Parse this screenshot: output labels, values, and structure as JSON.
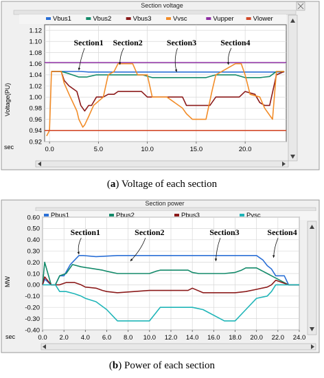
{
  "chart_data": [
    {
      "type": "line",
      "title": "Section voltage",
      "ylabel": "Voltage(PU)",
      "xunit_label": "sec",
      "caption_tag": "a",
      "caption_text": "Voltage of each section",
      "xlim": [
        -0.5,
        24.2
      ],
      "ylim": [
        0.92,
        1.13
      ],
      "xticks": [
        "0.0",
        "5.0",
        "10.0",
        "15.0",
        "20.0"
      ],
      "xtick_values": [
        0,
        5,
        10,
        15,
        20
      ],
      "yticks": [
        "0.92",
        "0.94",
        "0.96",
        "0.98",
        "1.00",
        "1.02",
        "1.04",
        "1.06",
        "1.08",
        "1.10",
        "1.12"
      ],
      "ytick_values": [
        0.92,
        0.94,
        0.96,
        0.98,
        1.0,
        1.02,
        1.04,
        1.06,
        1.08,
        1.1,
        1.12
      ],
      "grid": true,
      "legend_position": "top",
      "annotations": [
        {
          "text": "Section1",
          "x": 4.0,
          "y": 1.093,
          "arrow_to": [
            3.0,
            1.048
          ]
        },
        {
          "text": "Section2",
          "x": 8.0,
          "y": 1.093,
          "arrow_to": [
            7.2,
            1.058
          ]
        },
        {
          "text": "Section3",
          "x": 13.5,
          "y": 1.093,
          "arrow_to": [
            13.0,
            1.045
          ]
        },
        {
          "text": "Section4",
          "x": 19.0,
          "y": 1.093,
          "arrow_to": [
            18.3,
            1.058
          ]
        }
      ],
      "series": [
        {
          "name": "Vbus1",
          "color": "#2a6fd6",
          "x": [
            0.2,
            1.2,
            3.2,
            4.0,
            5.6,
            23.2,
            24.0
          ],
          "y": [
            1.046,
            1.046,
            1.046,
            1.045,
            1.045,
            1.045,
            1.045
          ]
        },
        {
          "name": "Vbus2",
          "color": "#138a6a",
          "x": [
            0.2,
            1.2,
            2.0,
            3.0,
            3.8,
            4.8,
            5.8,
            7.0,
            9.5,
            10.5,
            12.0,
            14.0,
            16.0,
            17.0,
            19.0,
            20.0,
            21.5,
            22.5,
            23.2,
            24.0
          ],
          "y": [
            1.046,
            1.046,
            1.042,
            1.036,
            1.036,
            1.04,
            1.04,
            1.04,
            1.04,
            1.035,
            1.035,
            1.035,
            1.035,
            1.04,
            1.04,
            1.035,
            1.035,
            1.037,
            1.046,
            1.046
          ]
        },
        {
          "name": "Vbus3",
          "color": "#8b1a1a",
          "x": [
            0.2,
            1.2,
            1.5,
            2.0,
            2.8,
            3.2,
            3.6,
            4.0,
            4.3,
            4.8,
            5.5,
            6.0,
            6.6,
            7.0,
            9.4,
            10.0,
            12.0,
            13.6,
            14.0,
            16.4,
            17.0,
            19.4,
            20.0,
            21.0,
            21.5,
            22.0,
            22.5,
            23.2,
            24.0
          ],
          "y": [
            1.046,
            1.046,
            1.03,
            1.02,
            1.01,
            0.985,
            0.975,
            0.985,
            0.985,
            1.0,
            1.0,
            1.005,
            1.005,
            1.01,
            1.01,
            1.0,
            1.0,
            1.0,
            0.985,
            0.985,
            1.0,
            1.0,
            1.01,
            1.005,
            0.99,
            0.985,
            0.985,
            1.04,
            1.046
          ]
        },
        {
          "name": "Vvsc",
          "color": "#f28c28",
          "x": [
            -0.3,
            0.0,
            0.2,
            1.2,
            1.5,
            2.0,
            2.8,
            3.0,
            3.4,
            3.6,
            4.0,
            4.5,
            5.5,
            6.0,
            6.6,
            7.0,
            8.5,
            9.0,
            10.0,
            10.5,
            12.0,
            13.6,
            14.0,
            14.6,
            15.0,
            16.0,
            16.6,
            17.0,
            19.0,
            19.6,
            20.0,
            20.5,
            21.5,
            22.0,
            22.4,
            22.8,
            23.2,
            24.0
          ],
          "y": [
            0.93,
            0.94,
            1.046,
            1.046,
            1.025,
            1.005,
            0.975,
            0.96,
            0.946,
            0.95,
            0.965,
            0.985,
            1.0,
            1.04,
            1.046,
            1.06,
            1.06,
            1.04,
            1.04,
            1.0,
            1.0,
            0.98,
            0.97,
            0.96,
            0.96,
            0.96,
            1.01,
            1.04,
            1.06,
            1.06,
            1.04,
            1.005,
            1.0,
            0.98,
            0.97,
            0.96,
            1.046,
            1.046
          ]
        },
        {
          "name": "Vupper",
          "color": "#8e2ea3",
          "x": [
            -0.5,
            24.2
          ],
          "y": [
            1.062,
            1.062
          ]
        },
        {
          "name": "Vlower",
          "color": "#d24a2a",
          "x": [
            -0.5,
            24.2
          ],
          "y": [
            0.94,
            0.94
          ]
        }
      ]
    },
    {
      "type": "line",
      "title": "Section power",
      "ylabel": "MW",
      "xunit_label": "sec",
      "caption_tag": "b",
      "caption_text": "Power of each section",
      "xlim": [
        0.0,
        24.0
      ],
      "ylim": [
        -0.4,
        0.6
      ],
      "xticks": [
        "0.0",
        "2.0",
        "4.0",
        "6.0",
        "8.0",
        "10.0",
        "12.0",
        "14.0",
        "16.0",
        "18.0",
        "20.0",
        "22.0",
        "24.0"
      ],
      "xtick_values": [
        0,
        2,
        4,
        6,
        8,
        10,
        12,
        14,
        16,
        18,
        20,
        22,
        24
      ],
      "yticks": [
        "0.60",
        "0.50",
        "0.40",
        "0.30",
        "0.20",
        "0.10",
        "0.00",
        "-0.10",
        "-0.20",
        "-0.30",
        "-0.40"
      ],
      "ytick_values": [
        0.6,
        0.5,
        0.4,
        0.3,
        0.2,
        0.1,
        0.0,
        -0.1,
        -0.2,
        -0.3,
        -0.4
      ],
      "grid": true,
      "legend_position": "top",
      "annotations": [
        {
          "text": "Section1",
          "x": 4.0,
          "y": 0.44,
          "arrow_to": [
            3.4,
            0.27
          ]
        },
        {
          "text": "Section2",
          "x": 10.0,
          "y": 0.44,
          "arrow_to": [
            8.2,
            0.21
          ]
        },
        {
          "text": "Section3",
          "x": 17.0,
          "y": 0.44,
          "arrow_to": [
            16.2,
            0.21
          ]
        },
        {
          "text": "Section4",
          "x": 22.4,
          "y": 0.44,
          "arrow_to": [
            21.6,
            0.24
          ]
        }
      ],
      "series": [
        {
          "name": "Pbus1",
          "color": "#2a6fd6",
          "x": [
            0.0,
            0.2,
            0.8,
            1.2,
            1.6,
            2.0,
            2.6,
            3.0,
            3.4,
            3.8,
            5.0,
            7.0,
            9.0,
            11.0,
            13.0,
            15.0,
            17.0,
            19.0,
            20.0,
            20.6,
            21.0,
            21.4,
            21.8,
            22.6,
            23.0,
            24.0
          ],
          "y": [
            0.0,
            0.05,
            0.0,
            0.0,
            0.08,
            0.08,
            0.18,
            0.22,
            0.26,
            0.26,
            0.25,
            0.26,
            0.26,
            0.26,
            0.26,
            0.26,
            0.26,
            0.26,
            0.26,
            0.22,
            0.17,
            0.14,
            0.08,
            0.08,
            0.0,
            0.0
          ]
        },
        {
          "name": "Pbus2",
          "color": "#138a6a",
          "x": [
            0.0,
            0.2,
            0.8,
            1.2,
            1.6,
            2.2,
            2.8,
            3.6,
            5.6,
            6.0,
            7.0,
            10.0,
            10.6,
            11.0,
            13.6,
            14.0,
            14.6,
            17.0,
            18.0,
            18.6,
            19.0,
            20.0,
            20.6,
            21.0,
            21.4,
            21.8,
            23.0,
            24.0
          ],
          "y": [
            0.0,
            0.2,
            0.0,
            0.0,
            0.08,
            0.1,
            0.18,
            0.16,
            0.13,
            0.12,
            0.1,
            0.1,
            0.12,
            0.13,
            0.13,
            0.11,
            0.1,
            0.1,
            0.11,
            0.13,
            0.15,
            0.15,
            0.12,
            0.1,
            0.08,
            0.06,
            0.0,
            0.0
          ]
        },
        {
          "name": "Pbus3",
          "color": "#8b1a1a",
          "x": [
            0.0,
            0.2,
            0.8,
            1.2,
            1.6,
            2.2,
            3.0,
            3.6,
            4.0,
            5.0,
            5.6,
            6.0,
            7.0,
            10.0,
            11.0,
            13.6,
            14.0,
            15.0,
            17.0,
            18.0,
            19.0,
            20.0,
            21.0,
            21.4,
            21.8,
            23.0,
            24.0
          ],
          "y": [
            0.0,
            0.07,
            0.0,
            0.0,
            0.0,
            0.02,
            0.02,
            0.0,
            -0.02,
            -0.03,
            -0.05,
            -0.06,
            -0.07,
            -0.05,
            -0.05,
            -0.05,
            -0.03,
            -0.07,
            -0.07,
            -0.07,
            -0.06,
            -0.04,
            -0.02,
            0.0,
            0.04,
            0.0,
            0.0
          ]
        },
        {
          "name": "Pvsc",
          "color": "#1fb5b8",
          "x": [
            0.0,
            0.2,
            0.8,
            1.2,
            1.6,
            2.2,
            3.0,
            3.6,
            4.0,
            5.0,
            6.0,
            7.0,
            10.0,
            11.0,
            13.6,
            14.0,
            15.0,
            17.0,
            18.0,
            19.0,
            20.0,
            21.0,
            21.4,
            21.8,
            23.0,
            24.0
          ],
          "y": [
            0.0,
            0.0,
            0.0,
            0.0,
            -0.06,
            -0.06,
            -0.08,
            -0.1,
            -0.12,
            -0.15,
            -0.22,
            -0.32,
            -0.32,
            -0.2,
            -0.2,
            -0.2,
            -0.22,
            -0.32,
            -0.32,
            -0.22,
            -0.12,
            -0.1,
            -0.06,
            0.0,
            0.0,
            0.0
          ]
        }
      ]
    }
  ]
}
